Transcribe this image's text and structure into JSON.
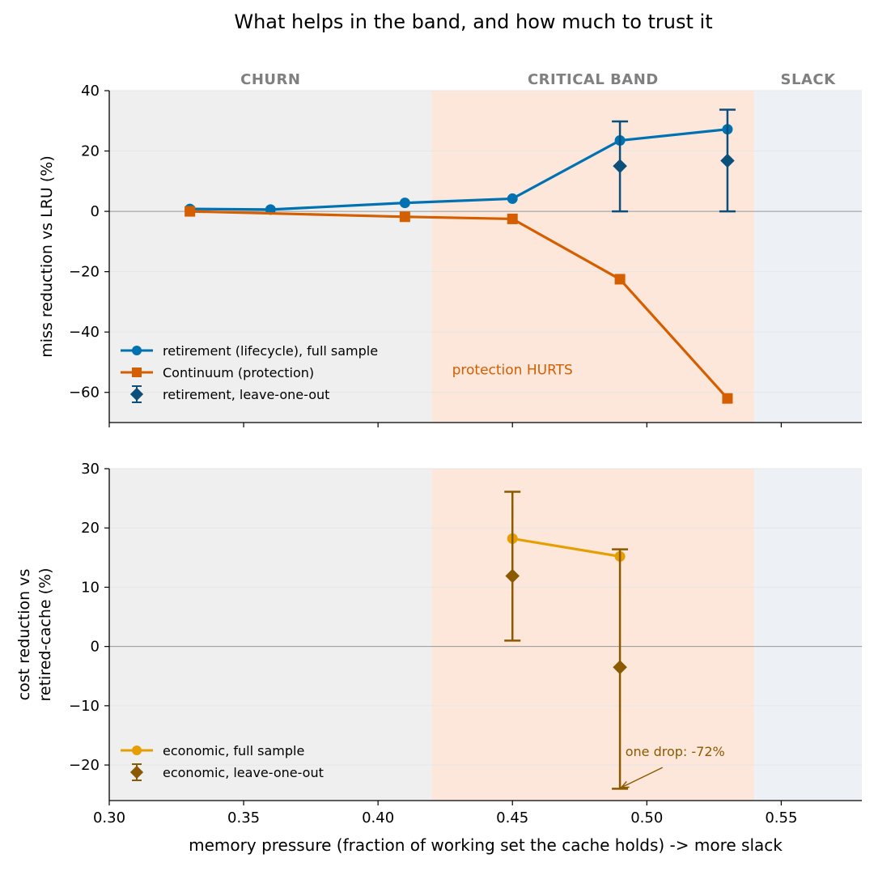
{
  "figure": {
    "title": "What helps in the band, and how much to trust it"
  },
  "regions": [
    {
      "label": "CHURN",
      "x_range": [
        0.3,
        0.42
      ],
      "color": "#efefef"
    },
    {
      "label": "CRITICAL BAND",
      "x_range": [
        0.42,
        0.54
      ],
      "color": "#fce7da"
    },
    {
      "label": "SLACK",
      "x_range": [
        0.54,
        0.58
      ],
      "color": "#edf1f5"
    }
  ],
  "colors": {
    "retirement": "#0072b2",
    "continuum": "#d55e00",
    "retirement_loo": "#0b4f7a",
    "economic": "#e69f00",
    "economic_loo": "#8b5a00",
    "region_label": "#808080",
    "zero_line": "#999999"
  },
  "chart_data": [
    {
      "type": "line",
      "xlabel": "",
      "ylabel": "miss reduction vs LRU  (%)",
      "xlim": [
        0.3,
        0.58
      ],
      "ylim": [
        -70,
        40
      ],
      "x_ticks": [
        0.3,
        0.35,
        0.4,
        0.45,
        0.5,
        0.55
      ],
      "y_ticks": [
        40,
        20,
        0,
        -20,
        -40,
        -60
      ],
      "grid": "horizontal",
      "legend_position": "lower-left",
      "series": [
        {
          "name": "retirement (lifecycle), full sample",
          "marker": "circle",
          "color": "#0072b2",
          "x": [
            0.33,
            0.36,
            0.41,
            0.45,
            0.49,
            0.53
          ],
          "y": [
            0.8,
            0.6,
            2.8,
            4.2,
            23.5,
            27.2
          ]
        },
        {
          "name": "Continuum (protection)",
          "marker": "square",
          "color": "#d55e00",
          "x": [
            0.33,
            0.41,
            0.45,
            0.49,
            0.53
          ],
          "y": [
            0.0,
            -1.8,
            -2.5,
            -22.5,
            -62.0
          ]
        },
        {
          "name": "retirement, leave-one-out",
          "marker": "diamond",
          "errorbar": true,
          "color": "#0b4f7a",
          "x": [
            0.49,
            0.53
          ],
          "y": [
            15.0,
            16.8
          ],
          "y_low": [
            0.0,
            0.0
          ],
          "y_high": [
            29.8,
            33.7
          ]
        }
      ],
      "annotations": [
        {
          "text": "protection HURTS",
          "x": 0.45,
          "y": -54,
          "color": "#d55e00"
        }
      ]
    },
    {
      "type": "line",
      "xlabel": "memory pressure  (fraction of working set the cache holds)  ->  more slack",
      "ylabel": "cost reduction vs\nretired-cache  (%)",
      "xlim": [
        0.3,
        0.58
      ],
      "ylim": [
        -26,
        30
      ],
      "x_ticks": [
        0.3,
        0.35,
        0.4,
        0.45,
        0.5,
        0.55
      ],
      "y_ticks": [
        30,
        20,
        10,
        0,
        -10,
        -20
      ],
      "grid": "horizontal",
      "legend_position": "lower-left",
      "series": [
        {
          "name": "economic, full sample",
          "marker": "circle",
          "color": "#e69f00",
          "x": [
            0.45,
            0.49
          ],
          "y": [
            18.2,
            15.2
          ]
        },
        {
          "name": "economic, leave-one-out",
          "marker": "diamond",
          "errorbar": true,
          "color": "#8b5a00",
          "x": [
            0.45,
            0.49
          ],
          "y": [
            11.9,
            -3.5
          ],
          "y_low": [
            1.0,
            -24.0
          ],
          "y_high": [
            26.1,
            16.4
          ]
        }
      ],
      "annotations": [
        {
          "text": "one drop: -72%",
          "x": 0.492,
          "y": -18.5,
          "arrow_to": [
            0.4905,
            -23.8
          ],
          "color": "#8b5a00"
        }
      ]
    }
  ]
}
